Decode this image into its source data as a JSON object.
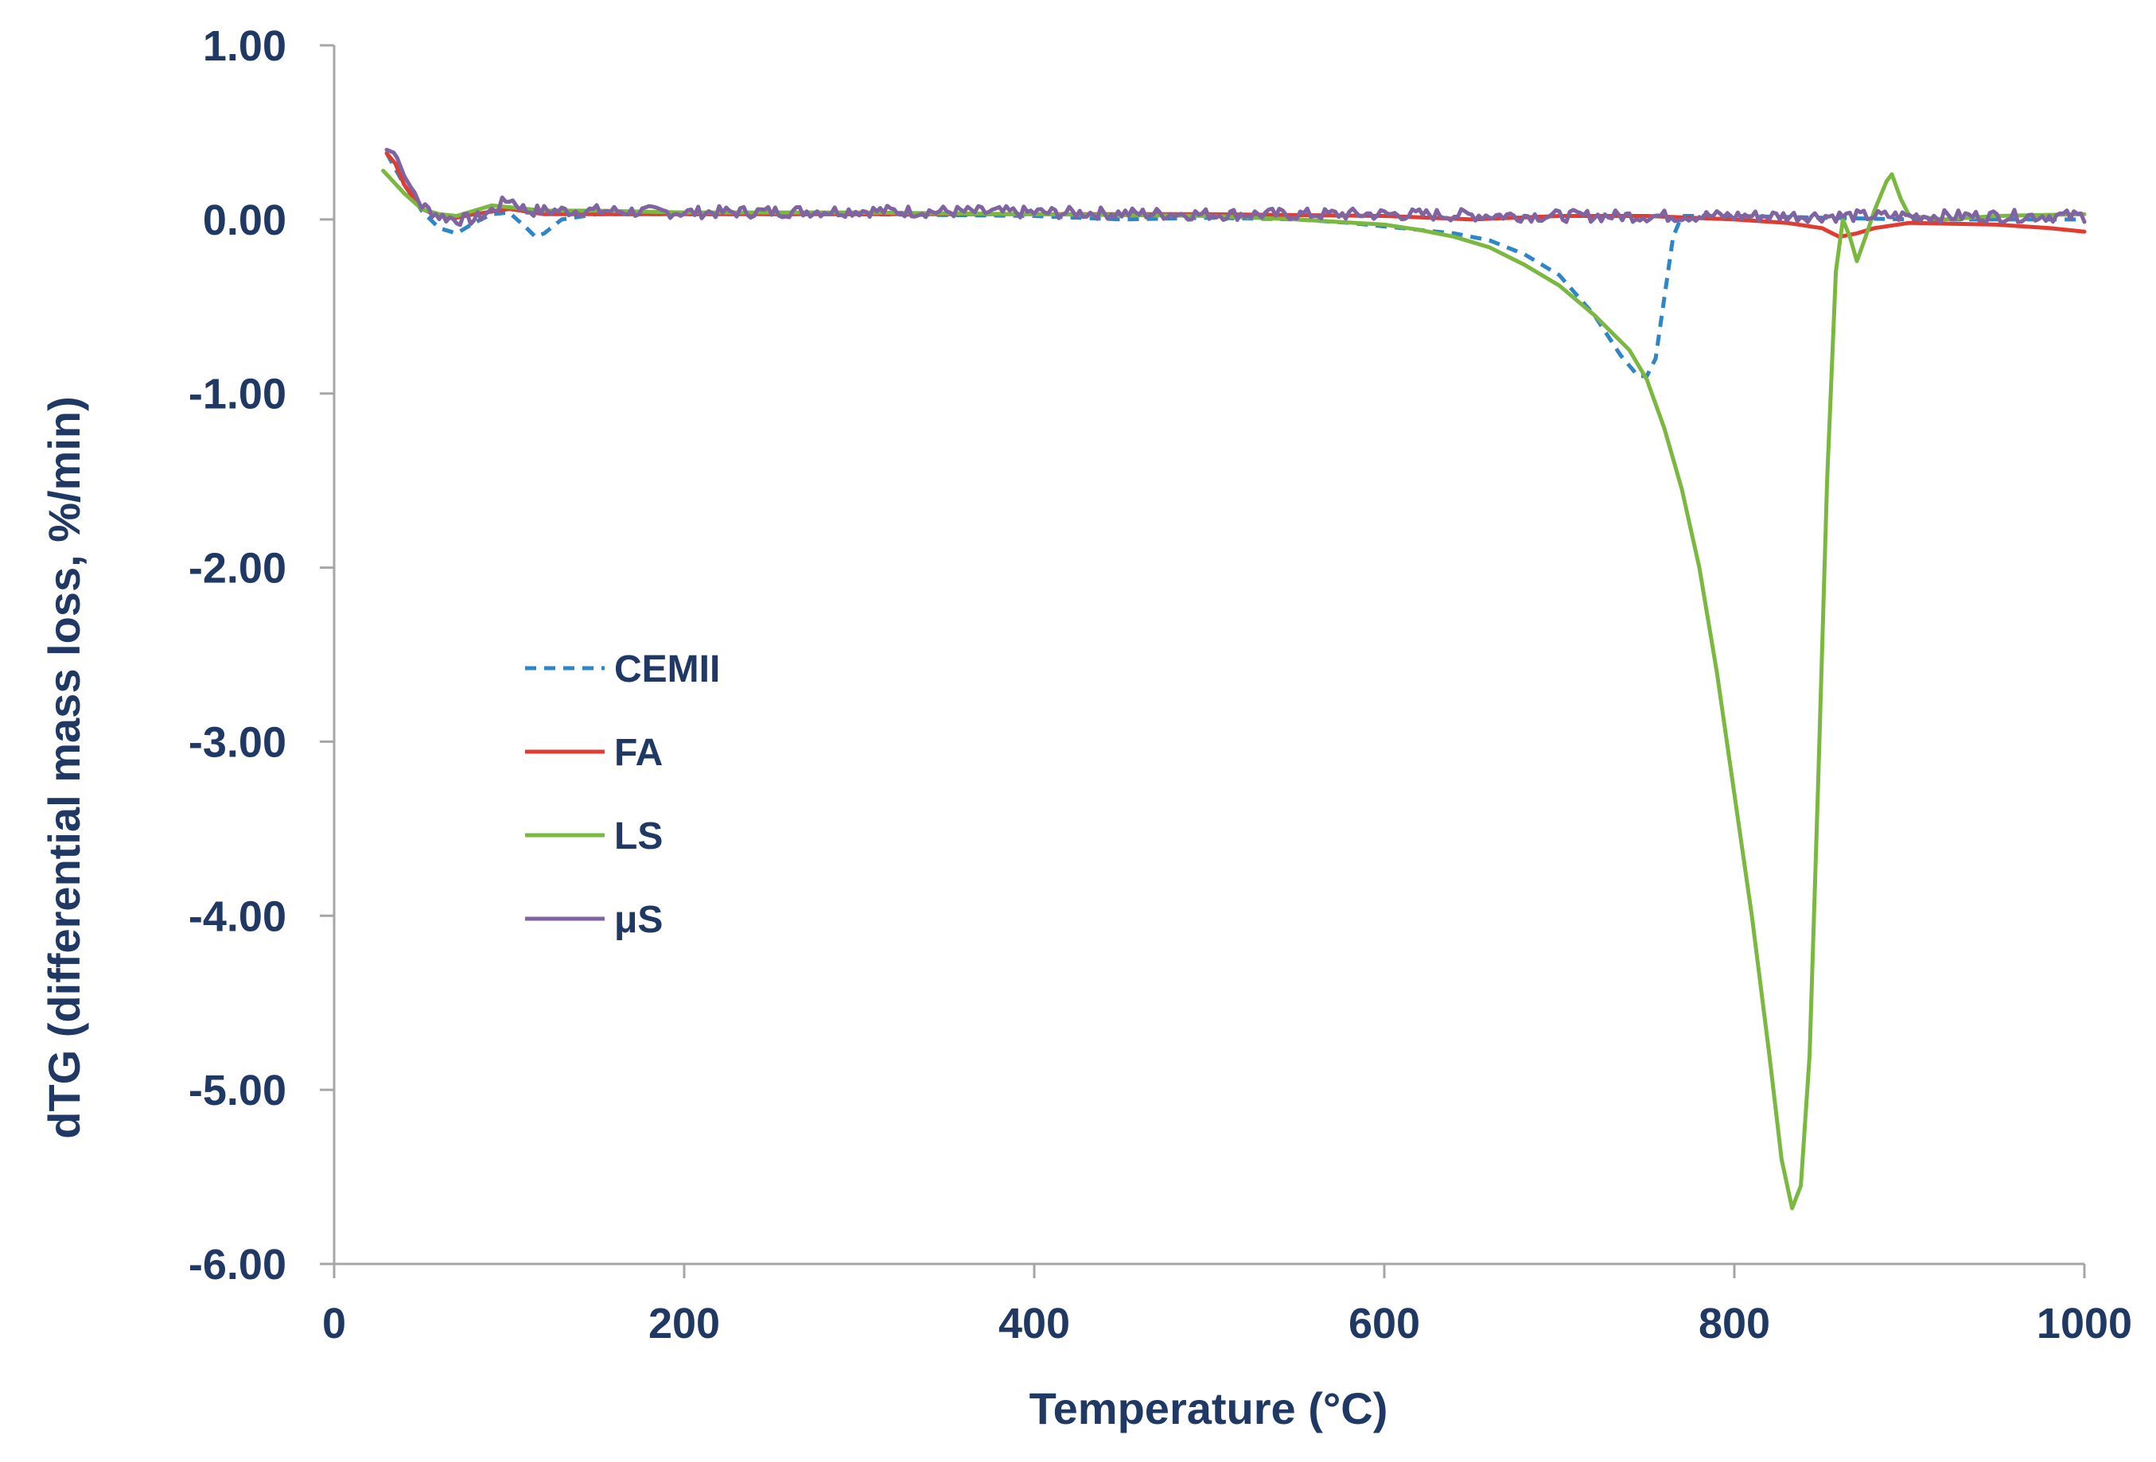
{
  "chart_data": {
    "type": "line",
    "title": "",
    "xlabel": "Temperature (°C)",
    "ylabel": "dTG (differential  mass loss, %/min)",
    "xlim": [
      0,
      1000
    ],
    "ylim": [
      -6,
      1
    ],
    "x_ticks": [
      "0",
      "200",
      "400",
      "600",
      "800",
      "1000"
    ],
    "y_ticks": [
      "1.00",
      "0.00",
      "-1.00",
      "-2.00",
      "-3.00",
      "-4.00",
      "-5.00",
      "-6.00"
    ],
    "grid": false,
    "legend_position": "center-left",
    "colors": {
      "axis": "#a6a6a6",
      "text": "#1f3864"
    },
    "series": [
      {
        "name": "CEMII",
        "color": "#2e86c8",
        "style": "dashed",
        "points": [
          [
            30,
            0.38
          ],
          [
            40,
            0.2
          ],
          [
            50,
            0.05
          ],
          [
            60,
            -0.05
          ],
          [
            70,
            -0.08
          ],
          [
            80,
            -0.02
          ],
          [
            90,
            0.03
          ],
          [
            100,
            0.04
          ],
          [
            110,
            -0.05
          ],
          [
            115,
            -0.1
          ],
          [
            120,
            -0.08
          ],
          [
            130,
            0.0
          ],
          [
            150,
            0.03
          ],
          [
            200,
            0.03
          ],
          [
            300,
            0.03
          ],
          [
            400,
            0.02
          ],
          [
            450,
            0.0
          ],
          [
            500,
            0.01
          ],
          [
            550,
            0.0
          ],
          [
            580,
            -0.02
          ],
          [
            600,
            -0.04
          ],
          [
            620,
            -0.06
          ],
          [
            640,
            -0.08
          ],
          [
            660,
            -0.12
          ],
          [
            680,
            -0.2
          ],
          [
            700,
            -0.32
          ],
          [
            720,
            -0.55
          ],
          [
            735,
            -0.78
          ],
          [
            745,
            -0.9
          ],
          [
            750,
            -0.9
          ],
          [
            755,
            -0.8
          ],
          [
            760,
            -0.45
          ],
          [
            765,
            -0.1
          ],
          [
            770,
            0.02
          ],
          [
            800,
            0.02
          ],
          [
            850,
            0.01
          ],
          [
            900,
            0.0
          ],
          [
            950,
            0.0
          ],
          [
            1000,
            0.0
          ]
        ]
      },
      {
        "name": "FA",
        "color": "#e03c31",
        "style": "solid",
        "points": [
          [
            30,
            0.38
          ],
          [
            35,
            0.32
          ],
          [
            40,
            0.2
          ],
          [
            50,
            0.06
          ],
          [
            60,
            0.02
          ],
          [
            70,
            0.01
          ],
          [
            80,
            0.03
          ],
          [
            100,
            0.06
          ],
          [
            120,
            0.03
          ],
          [
            150,
            0.03
          ],
          [
            200,
            0.03
          ],
          [
            300,
            0.03
          ],
          [
            400,
            0.03
          ],
          [
            500,
            0.03
          ],
          [
            600,
            0.02
          ],
          [
            650,
            0.0
          ],
          [
            700,
            0.02
          ],
          [
            750,
            0.02
          ],
          [
            800,
            0.0
          ],
          [
            830,
            -0.02
          ],
          [
            850,
            -0.05
          ],
          [
            860,
            -0.1
          ],
          [
            870,
            -0.08
          ],
          [
            880,
            -0.05
          ],
          [
            900,
            -0.02
          ],
          [
            950,
            -0.03
          ],
          [
            980,
            -0.05
          ],
          [
            1000,
            -0.07
          ]
        ]
      },
      {
        "name": "LS",
        "color": "#7ab83f",
        "style": "solid",
        "points": [
          [
            28,
            0.28
          ],
          [
            40,
            0.15
          ],
          [
            50,
            0.06
          ],
          [
            60,
            0.03
          ],
          [
            70,
            0.02
          ],
          [
            80,
            0.05
          ],
          [
            90,
            0.08
          ],
          [
            100,
            0.07
          ],
          [
            120,
            0.05
          ],
          [
            150,
            0.05
          ],
          [
            200,
            0.04
          ],
          [
            300,
            0.04
          ],
          [
            400,
            0.03
          ],
          [
            500,
            0.02
          ],
          [
            550,
            0.0
          ],
          [
            600,
            -0.03
          ],
          [
            620,
            -0.06
          ],
          [
            640,
            -0.1
          ],
          [
            660,
            -0.16
          ],
          [
            680,
            -0.26
          ],
          [
            700,
            -0.38
          ],
          [
            720,
            -0.55
          ],
          [
            740,
            -0.75
          ],
          [
            750,
            -0.92
          ],
          [
            760,
            -1.2
          ],
          [
            770,
            -1.55
          ],
          [
            780,
            -2.0
          ],
          [
            790,
            -2.6
          ],
          [
            800,
            -3.3
          ],
          [
            810,
            -4.0
          ],
          [
            820,
            -4.8
          ],
          [
            827,
            -5.4
          ],
          [
            833,
            -5.68
          ],
          [
            838,
            -5.55
          ],
          [
            843,
            -4.8
          ],
          [
            848,
            -3.2
          ],
          [
            853,
            -1.5
          ],
          [
            858,
            -0.3
          ],
          [
            862,
            0.0
          ],
          [
            866,
            -0.1
          ],
          [
            870,
            -0.24
          ],
          [
            875,
            -0.1
          ],
          [
            880,
            0.05
          ],
          [
            887,
            0.22
          ],
          [
            890,
            0.26
          ],
          [
            895,
            0.12
          ],
          [
            900,
            0.02
          ],
          [
            920,
            0.0
          ],
          [
            950,
            0.02
          ],
          [
            1000,
            0.03
          ]
        ]
      },
      {
        "name": "μS",
        "color": "#8064a2",
        "style": "solid",
        "noisy": true,
        "points": [
          [
            30,
            0.4
          ],
          [
            35,
            0.38
          ],
          [
            40,
            0.25
          ],
          [
            50,
            0.08
          ],
          [
            60,
            0.02
          ],
          [
            70,
            0.0
          ],
          [
            80,
            0.0
          ],
          [
            90,
            0.05
          ],
          [
            100,
            0.12
          ],
          [
            110,
            0.05
          ],
          [
            150,
            0.05
          ],
          [
            200,
            0.04
          ],
          [
            300,
            0.05
          ],
          [
            400,
            0.04
          ],
          [
            500,
            0.03
          ],
          [
            600,
            0.03
          ],
          [
            700,
            0.02
          ],
          [
            800,
            0.02
          ],
          [
            900,
            0.02
          ],
          [
            1000,
            0.02
          ]
        ]
      }
    ]
  }
}
